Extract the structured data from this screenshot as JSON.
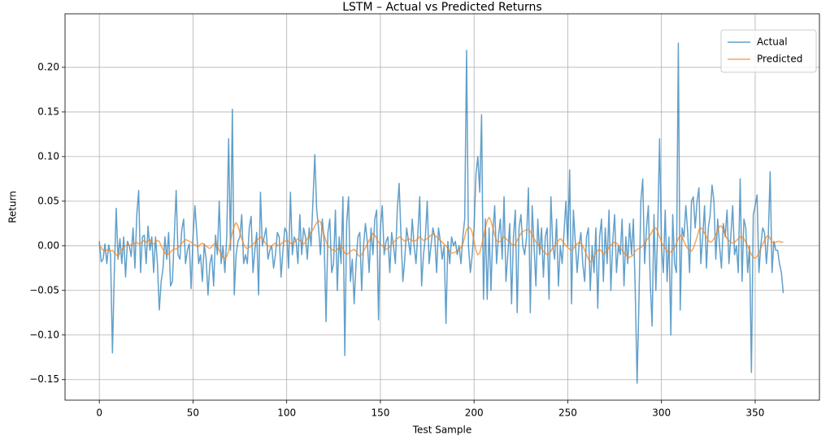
{
  "chart_data": {
    "type": "line",
    "title": "LSTM – Actual vs Predicted Returns",
    "x_label": "Test Sample",
    "y_label": "Return",
    "xlim": [
      -18.3,
      384.3
    ],
    "xticks": [
      0,
      50,
      100,
      150,
      200,
      250,
      300,
      350
    ],
    "ylim": [
      -0.173,
      0.26
    ],
    "yticks": [
      {
        "value": -0.15,
        "label": "−0.15"
      },
      {
        "value": -0.1,
        "label": "−0.10"
      },
      {
        "value": -0.05,
        "label": "−0.05"
      },
      {
        "value": 0,
        "label": "0.00"
      },
      {
        "value": 0.05,
        "label": "0.05"
      },
      {
        "value": 0.1,
        "label": "0.10"
      },
      {
        "value": 0.15,
        "label": "0.15"
      },
      {
        "value": 0.2,
        "label": "0.20"
      }
    ],
    "grid": true,
    "legend": "upper-right",
    "series": [
      {
        "name": "Actual",
        "color": "#1f77b4",
        "values": [
          0.005,
          -0.018,
          -0.015,
          0.002,
          -0.02,
          0.001,
          -0.01,
          -0.12,
          -0.03,
          0.042,
          -0.015,
          0.008,
          -0.02,
          0.01,
          -0.035,
          0.005,
          0.0,
          -0.012,
          0.02,
          -0.025,
          0.035,
          0.062,
          -0.03,
          0.01,
          0.012,
          -0.02,
          0.022,
          -0.005,
          0.01,
          -0.03,
          0.01,
          -0.02,
          -0.072,
          -0.04,
          -0.025,
          0.01,
          -0.015,
          0.015,
          -0.045,
          -0.04,
          0.01,
          0.062,
          -0.01,
          -0.015,
          0.018,
          0.03,
          -0.02,
          -0.005,
          0.002,
          -0.048,
          0.01,
          0.045,
          0.015,
          -0.02,
          -0.01,
          -0.04,
          0.002,
          -0.015,
          -0.055,
          -0.02,
          -0.01,
          -0.045,
          0.012,
          -0.01,
          0.05,
          -0.02,
          0.0,
          -0.03,
          0.01,
          0.12,
          -0.005,
          0.153,
          -0.055,
          -0.01,
          0.005,
          0.01,
          0.035,
          -0.02,
          -0.01,
          -0.02,
          0.02,
          0.033,
          -0.03,
          -0.005,
          0.015,
          -0.055,
          0.06,
          0.0,
          0.01,
          0.02,
          -0.015,
          -0.005,
          0.0,
          -0.025,
          -0.01,
          0.015,
          0.01,
          -0.035,
          -0.005,
          0.02,
          0.015,
          -0.025,
          0.06,
          -0.01,
          0.01,
          0.005,
          -0.02,
          0.035,
          -0.01,
          0.02,
          0.01,
          -0.015,
          0.02,
          0.0,
          0.05,
          0.102,
          0.04,
          0.02,
          -0.01,
          0.03,
          0.005,
          -0.085,
          0.015,
          0.03,
          -0.03,
          -0.02,
          0.04,
          -0.05,
          0.01,
          -0.02,
          0.055,
          -0.123,
          0.025,
          0.055,
          -0.04,
          -0.015,
          -0.065,
          -0.02,
          0.01,
          0.015,
          -0.05,
          0.0,
          0.025,
          0.005,
          -0.03,
          0.02,
          -0.01,
          0.03,
          0.04,
          -0.083,
          0.02,
          0.045,
          -0.01,
          0.005,
          0.01,
          -0.03,
          0.015,
          0.0,
          -0.02,
          0.04,
          0.07,
          0.01,
          -0.04,
          -0.015,
          0.02,
          0.005,
          -0.01,
          0.03,
          0.0,
          -0.02,
          0.015,
          0.055,
          -0.045,
          -0.01,
          0.01,
          0.05,
          -0.02,
          0.0,
          0.02,
          0.01,
          -0.03,
          0.02,
          0.005,
          -0.015,
          0.0,
          -0.087,
          0.005,
          -0.02,
          0.01,
          0.0,
          0.005,
          -0.01,
          0.0,
          -0.02,
          0.01,
          0.03,
          0.219,
          0.0,
          -0.03,
          -0.01,
          0.02,
          0.08,
          0.1,
          0.06,
          0.147,
          -0.06,
          0.03,
          -0.06,
          0.02,
          -0.05,
          0.015,
          0.045,
          -0.02,
          0.01,
          0.03,
          -0.015,
          0.055,
          -0.04,
          -0.01,
          0.025,
          -0.065,
          0.01,
          0.04,
          -0.075,
          0.02,
          0.035,
          0.0,
          -0.01,
          0.01,
          0.065,
          -0.075,
          0.045,
          0.0,
          -0.045,
          0.03,
          -0.01,
          0.02,
          -0.035,
          0.01,
          0.02,
          -0.06,
          0.055,
          0.0,
          -0.015,
          0.03,
          -0.045,
          0.0,
          -0.02,
          0.015,
          0.05,
          0.0,
          0.085,
          -0.065,
          0.04,
          0.005,
          -0.03,
          0.0,
          0.015,
          -0.02,
          -0.04,
          0.01,
          0.02,
          -0.05,
          0.0,
          -0.03,
          0.02,
          -0.07,
          0.01,
          0.03,
          -0.04,
          0.02,
          -0.02,
          0.04,
          -0.05,
          0.005,
          0.035,
          -0.03,
          0.0,
          -0.01,
          0.03,
          -0.045,
          0.01,
          -0.02,
          0.025,
          -0.01,
          0.03,
          -0.05,
          -0.154,
          -0.06,
          0.05,
          0.075,
          -0.02,
          0.02,
          0.045,
          -0.04,
          -0.09,
          0.035,
          -0.05,
          0.02,
          0.12,
          0.0,
          -0.03,
          0.04,
          -0.04,
          0.01,
          -0.1,
          0.035,
          -0.02,
          -0.03,
          0.227,
          -0.072,
          0.02,
          0.01,
          0.045,
          0.015,
          -0.03,
          0.05,
          0.055,
          0.02,
          0.05,
          0.065,
          -0.02,
          0.01,
          0.045,
          -0.025,
          0.02,
          0.035,
          0.068,
          0.05,
          -0.015,
          0.03,
          0.0,
          -0.025,
          0.025,
          0.01,
          0.04,
          -0.02,
          0.01,
          0.045,
          -0.01,
          0.0,
          -0.03,
          0.075,
          -0.04,
          0.03,
          0.02,
          -0.03,
          0.0,
          -0.142,
          0.035,
          0.045,
          0.057,
          -0.03,
          0.0,
          0.02,
          0.015,
          -0.02,
          0.01,
          0.083,
          -0.03,
          0.005,
          -0.005,
          -0.005,
          -0.02,
          -0.03,
          -0.053
        ]
      },
      {
        "name": "Predicted",
        "color": "#ff7f0e",
        "values": [
          0.0,
          -0.002,
          -0.005,
          -0.006,
          -0.005,
          -0.004,
          -0.006,
          -0.005,
          -0.008,
          -0.01,
          -0.012,
          -0.008,
          -0.004,
          -0.002,
          0.0,
          0.001,
          0.0,
          0.001,
          0.002,
          0.003,
          0.004,
          0.002,
          0.003,
          0.005,
          0.006,
          0.004,
          0.005,
          0.007,
          0.003,
          0.002,
          0.004,
          0.006,
          0.005,
          0.0,
          -0.004,
          -0.008,
          -0.01,
          -0.009,
          -0.007,
          -0.005,
          -0.003,
          -0.004,
          -0.002,
          0.0,
          0.003,
          0.005,
          0.007,
          0.006,
          0.005,
          0.004,
          0.002,
          0.001,
          0.0,
          -0.001,
          0.002,
          0.003,
          0.001,
          0.0,
          -0.002,
          -0.003,
          -0.001,
          0.002,
          0.003,
          0.0,
          -0.005,
          -0.01,
          -0.013,
          -0.014,
          -0.012,
          -0.006,
          0.005,
          0.015,
          0.022,
          0.026,
          0.022,
          0.015,
          0.008,
          0.002,
          -0.002,
          -0.003,
          -0.002,
          0.0,
          0.002,
          0.004,
          0.006,
          0.008,
          0.01,
          0.008,
          0.005,
          0.002,
          0.0,
          -0.001,
          0.0,
          0.002,
          0.003,
          0.001,
          0.0,
          0.002,
          0.004,
          0.005,
          0.006,
          0.005,
          0.003,
          0.002,
          0.004,
          0.006,
          0.008,
          0.006,
          0.004,
          0.002,
          0.004,
          0.008,
          0.012,
          0.015,
          0.018,
          0.022,
          0.026,
          0.028,
          0.027,
          0.02,
          0.012,
          0.005,
          0.0,
          -0.002,
          -0.004,
          -0.005,
          -0.006,
          -0.004,
          -0.002,
          0.0,
          -0.003,
          -0.008,
          -0.01,
          -0.008,
          -0.006,
          -0.005,
          -0.004,
          -0.006,
          -0.01,
          -0.012,
          -0.01,
          -0.006,
          -0.002,
          0.002,
          0.006,
          0.01,
          0.014,
          0.012,
          0.008,
          0.004,
          0.002,
          0.0,
          -0.002,
          -0.004,
          -0.003,
          -0.001,
          0.002,
          0.004,
          0.006,
          0.008,
          0.01,
          0.009,
          0.007,
          0.005,
          0.006,
          0.008,
          0.007,
          0.006,
          0.005,
          0.006,
          0.008,
          0.01,
          0.008,
          0.006,
          0.007,
          0.008,
          0.01,
          0.012,
          0.013,
          0.012,
          0.01,
          0.008,
          0.006,
          0.004,
          0.002,
          0.0,
          -0.003,
          -0.006,
          -0.008,
          -0.008,
          -0.007,
          -0.006,
          -0.004,
          -0.002,
          0.002,
          0.01,
          0.018,
          0.021,
          0.02,
          0.015,
          0.005,
          -0.005,
          -0.01,
          -0.008,
          0.0,
          0.01,
          0.02,
          0.028,
          0.032,
          0.028,
          0.02,
          0.012,
          0.006,
          0.004,
          0.005,
          0.008,
          0.01,
          0.008,
          0.006,
          0.004,
          0.002,
          0.0,
          0.002,
          0.006,
          0.01,
          0.014,
          0.016,
          0.017,
          0.018,
          0.018,
          0.016,
          0.012,
          0.008,
          0.004,
          0.002,
          0.0,
          -0.003,
          -0.006,
          -0.008,
          -0.01,
          -0.009,
          -0.006,
          -0.002,
          0.0,
          0.003,
          0.006,
          0.008,
          0.006,
          0.003,
          0.0,
          -0.002,
          -0.004,
          -0.005,
          -0.003,
          0.0,
          0.002,
          0.004,
          0.003,
          0.0,
          -0.005,
          -0.01,
          -0.015,
          -0.018,
          -0.016,
          -0.012,
          -0.008,
          -0.005,
          -0.004,
          -0.006,
          -0.01,
          -0.008,
          -0.005,
          -0.002,
          0.001,
          0.003,
          0.004,
          0.003,
          0.001,
          -0.002,
          -0.005,
          -0.008,
          -0.01,
          -0.012,
          -0.013,
          -0.012,
          -0.01,
          -0.006,
          -0.004,
          -0.003,
          -0.002,
          0.0,
          0.003,
          0.006,
          0.009,
          0.012,
          0.016,
          0.02,
          0.02,
          0.016,
          0.01,
          0.004,
          0.0,
          -0.003,
          -0.006,
          -0.008,
          -0.007,
          -0.004,
          -0.002,
          0.003,
          0.008,
          0.012,
          0.01,
          0.005,
          0.0,
          -0.003,
          -0.005,
          -0.006,
          -0.003,
          0.003,
          0.01,
          0.018,
          0.02,
          0.018,
          0.014,
          0.01,
          0.006,
          0.004,
          0.005,
          0.008,
          0.012,
          0.018,
          0.022,
          0.022,
          0.018,
          0.012,
          0.008,
          0.006,
          0.004,
          0.003,
          0.004,
          0.006,
          0.008,
          0.01,
          0.01,
          0.008,
          0.004,
          0.0,
          -0.005,
          -0.01,
          -0.013,
          -0.014,
          -0.012,
          -0.008,
          -0.003,
          0.002,
          0.006,
          0.01,
          0.012,
          0.008,
          0.004,
          0.003,
          0.004,
          0.005,
          0.005,
          0.004,
          0.004
        ]
      }
    ]
  }
}
